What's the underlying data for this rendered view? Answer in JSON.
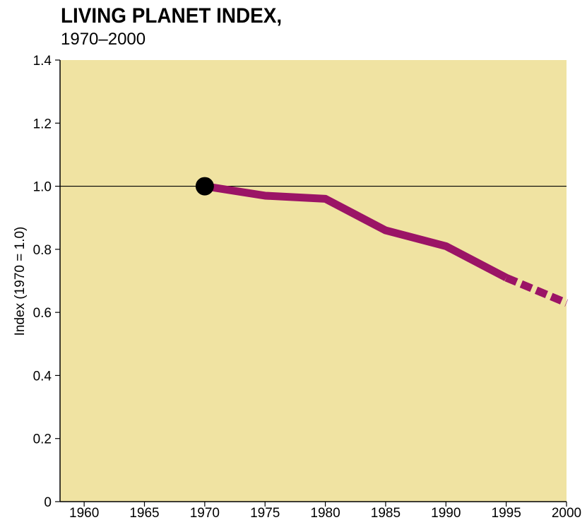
{
  "chart_data": {
    "type": "line",
    "title": "LIVING PLANET INDEX,",
    "subtitle": "1970–2000",
    "xlabel": "",
    "ylabel": "Index (1970 = 1.0)",
    "xlim": [
      1958,
      2000
    ],
    "ylim": [
      0,
      1.4
    ],
    "x_ticks": [
      1960,
      1965,
      1970,
      1975,
      1980,
      1985,
      1990,
      1995,
      2000
    ],
    "y_ticks": [
      0,
      0.2,
      0.4,
      0.6,
      0.8,
      1.0,
      1.2,
      1.4
    ],
    "y_tick_labels": [
      "0",
      "0.2",
      "0.4",
      "0.6",
      "0.8",
      "1.0",
      "1.2",
      "1.4"
    ],
    "reference_line": 1.0,
    "start_marker": {
      "x": 1970,
      "y": 1.0
    },
    "series": [
      {
        "x": [
          1970,
          1975,
          1980,
          1985,
          1990,
          1995
        ],
        "y": [
          1.0,
          0.97,
          0.96,
          0.86,
          0.81,
          0.71
        ],
        "style": "solid"
      },
      {
        "x": [
          1995,
          2000
        ],
        "y": [
          0.71,
          0.63
        ],
        "style": "dashed"
      }
    ],
    "grid": false,
    "colors": {
      "plot_background": "#f0e3a2",
      "line": "#9b1466",
      "marker": "#000000",
      "axes": "#000000"
    }
  }
}
